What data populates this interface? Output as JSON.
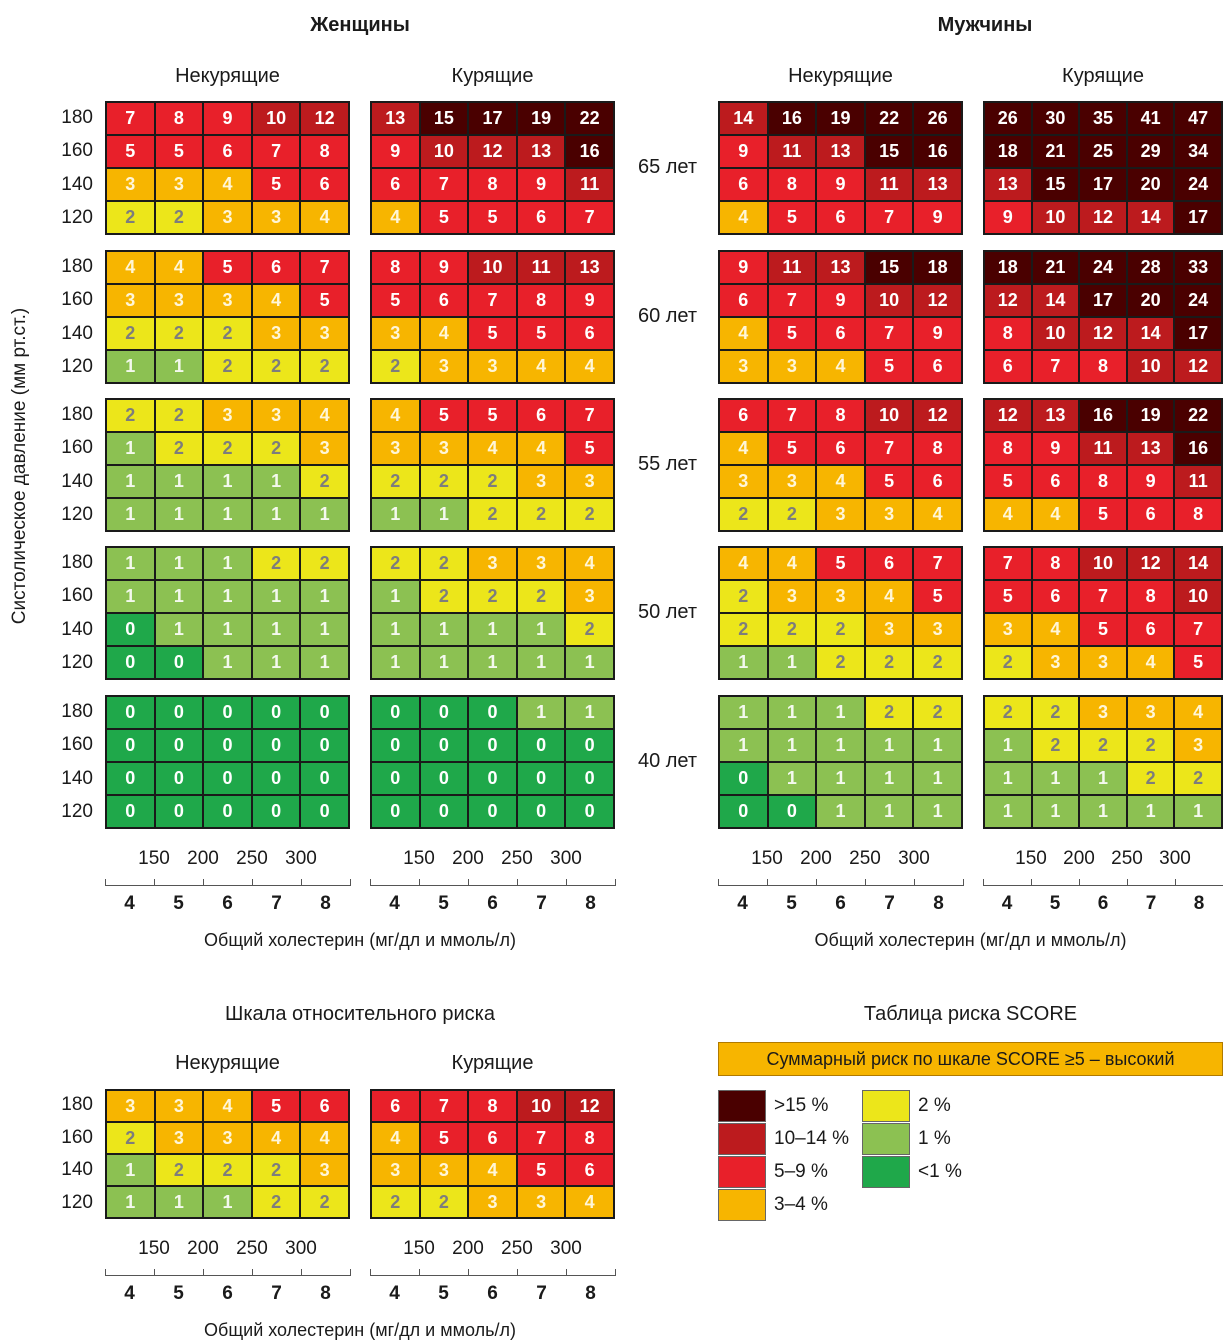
{
  "women_title": "Женщины",
  "men_title": "Мужчины",
  "nonsmokers_label": "Некурящие",
  "smokers_label": "Курящие",
  "y_axis_label": "Систолическое давление (мм рт.ст.)",
  "x_axis_label": "Общий холестерин (мг/дл и ммоль/л)",
  "bp_levels": [
    "180",
    "160",
    "140",
    "120"
  ],
  "chol_mgdl": [
    "150",
    "200",
    "250",
    "300"
  ],
  "chol_mmol": [
    "4",
    "5",
    "6",
    "7",
    "8"
  ],
  "ages": [
    "65 лет",
    "60 лет",
    "55 лет",
    "50 лет",
    "40 лет"
  ],
  "colors": {
    "dark": "#4a0000",
    "darkred": "#bc1b1e",
    "red": "#e8202a",
    "orange": "#f7b500",
    "yellow": "#ece61a",
    "lightgreen": "#8cc152",
    "green": "#1fa84a"
  },
  "main_tables": {
    "women_nonsmokers": [
      [
        [
          7,
          8,
          9,
          10,
          12
        ],
        [
          5,
          5,
          6,
          7,
          8
        ],
        [
          3,
          3,
          4,
          5,
          6
        ],
        [
          2,
          2,
          3,
          3,
          4
        ]
      ],
      [
        [
          4,
          4,
          5,
          6,
          7
        ],
        [
          3,
          3,
          3,
          4,
          5
        ],
        [
          2,
          2,
          2,
          3,
          3
        ],
        [
          1,
          1,
          2,
          2,
          2
        ]
      ],
      [
        [
          2,
          2,
          3,
          3,
          4
        ],
        [
          1,
          2,
          2,
          2,
          3
        ],
        [
          1,
          1,
          1,
          1,
          2
        ],
        [
          1,
          1,
          1,
          1,
          1
        ]
      ],
      [
        [
          1,
          1,
          1,
          2,
          2
        ],
        [
          1,
          1,
          1,
          1,
          1
        ],
        [
          0,
          1,
          1,
          1,
          1
        ],
        [
          0,
          0,
          1,
          1,
          1
        ]
      ],
      [
        [
          0,
          0,
          0,
          0,
          0
        ],
        [
          0,
          0,
          0,
          0,
          0
        ],
        [
          0,
          0,
          0,
          0,
          0
        ],
        [
          0,
          0,
          0,
          0,
          0
        ]
      ]
    ],
    "women_smokers": [
      [
        [
          13,
          15,
          17,
          19,
          22
        ],
        [
          9,
          10,
          12,
          13,
          16
        ],
        [
          6,
          7,
          8,
          9,
          11
        ],
        [
          4,
          5,
          5,
          6,
          7
        ]
      ],
      [
        [
          8,
          9,
          10,
          11,
          13
        ],
        [
          5,
          6,
          7,
          8,
          9
        ],
        [
          3,
          4,
          5,
          5,
          6
        ],
        [
          2,
          3,
          3,
          4,
          4
        ]
      ],
      [
        [
          4,
          5,
          5,
          6,
          7
        ],
        [
          3,
          3,
          4,
          4,
          5
        ],
        [
          2,
          2,
          2,
          3,
          3
        ],
        [
          1,
          1,
          2,
          2,
          2
        ]
      ],
      [
        [
          2,
          2,
          3,
          3,
          4
        ],
        [
          1,
          2,
          2,
          2,
          3
        ],
        [
          1,
          1,
          1,
          1,
          2
        ],
        [
          1,
          1,
          1,
          1,
          1
        ]
      ],
      [
        [
          0,
          0,
          0,
          1,
          1
        ],
        [
          0,
          0,
          0,
          0,
          0
        ],
        [
          0,
          0,
          0,
          0,
          0
        ],
        [
          0,
          0,
          0,
          0,
          0
        ]
      ]
    ],
    "men_nonsmokers": [
      [
        [
          14,
          16,
          19,
          22,
          26
        ],
        [
          9,
          11,
          13,
          15,
          16
        ],
        [
          6,
          8,
          9,
          11,
          13
        ],
        [
          4,
          5,
          6,
          7,
          9
        ]
      ],
      [
        [
          9,
          11,
          13,
          15,
          18
        ],
        [
          6,
          7,
          9,
          10,
          12
        ],
        [
          4,
          5,
          6,
          7,
          9
        ],
        [
          3,
          3,
          4,
          5,
          6
        ]
      ],
      [
        [
          6,
          7,
          8,
          10,
          12
        ],
        [
          4,
          5,
          6,
          7,
          8
        ],
        [
          3,
          3,
          4,
          5,
          6
        ],
        [
          2,
          2,
          3,
          3,
          4
        ]
      ],
      [
        [
          4,
          4,
          5,
          6,
          7
        ],
        [
          2,
          3,
          3,
          4,
          5
        ],
        [
          2,
          2,
          2,
          3,
          3
        ],
        [
          1,
          1,
          2,
          2,
          2
        ]
      ],
      [
        [
          1,
          1,
          1,
          2,
          2
        ],
        [
          1,
          1,
          1,
          1,
          1
        ],
        [
          0,
          1,
          1,
          1,
          1
        ],
        [
          0,
          0,
          1,
          1,
          1
        ]
      ]
    ],
    "men_smokers": [
      [
        [
          26,
          30,
          35,
          41,
          47
        ],
        [
          18,
          21,
          25,
          29,
          34
        ],
        [
          13,
          15,
          17,
          20,
          24
        ],
        [
          9,
          10,
          12,
          14,
          17
        ]
      ],
      [
        [
          18,
          21,
          24,
          28,
          33
        ],
        [
          12,
          14,
          17,
          20,
          24
        ],
        [
          8,
          10,
          12,
          14,
          17
        ],
        [
          6,
          7,
          8,
          10,
          12
        ]
      ],
      [
        [
          12,
          13,
          16,
          19,
          22
        ],
        [
          8,
          9,
          11,
          13,
          16
        ],
        [
          5,
          6,
          8,
          9,
          11
        ],
        [
          4,
          4,
          5,
          6,
          8
        ]
      ],
      [
        [
          7,
          8,
          10,
          12,
          14
        ],
        [
          5,
          6,
          7,
          8,
          10
        ],
        [
          3,
          4,
          5,
          6,
          7
        ],
        [
          2,
          3,
          3,
          4,
          5
        ]
      ],
      [
        [
          2,
          2,
          3,
          3,
          4
        ],
        [
          1,
          2,
          2,
          2,
          3
        ],
        [
          1,
          1,
          1,
          2,
          2
        ],
        [
          1,
          1,
          1,
          1,
          1
        ]
      ]
    ]
  },
  "relative_title": "Шкала относительного риска",
  "relative_nonsmokers": [
    [
      3,
      3,
      4,
      5,
      6
    ],
    [
      2,
      3,
      3,
      4,
      4
    ],
    [
      1,
      2,
      2,
      2,
      3
    ],
    [
      1,
      1,
      1,
      2,
      2
    ]
  ],
  "relative_smokers": [
    [
      6,
      7,
      8,
      10,
      12
    ],
    [
      4,
      5,
      6,
      7,
      8
    ],
    [
      3,
      3,
      4,
      5,
      6
    ],
    [
      2,
      2,
      3,
      3,
      4
    ]
  ],
  "legend_title": "Таблица риска SCORE",
  "banner_text": "Суммарный риск по шкале SCORE ≥5 – высокий",
  "legend": [
    {
      "label": ">15 %",
      "color": "#4a0000"
    },
    {
      "label": "10–14 %",
      "color": "#bc1b1e"
    },
    {
      "label": "5–9 %",
      "color": "#e8202a"
    },
    {
      "label": "3–4 %",
      "color": "#f7b500"
    },
    {
      "label": "2 %",
      "color": "#ece61a"
    },
    {
      "label": "1 %",
      "color": "#8cc152"
    },
    {
      "label": "<1 %",
      "color": "#1fa84a"
    }
  ]
}
